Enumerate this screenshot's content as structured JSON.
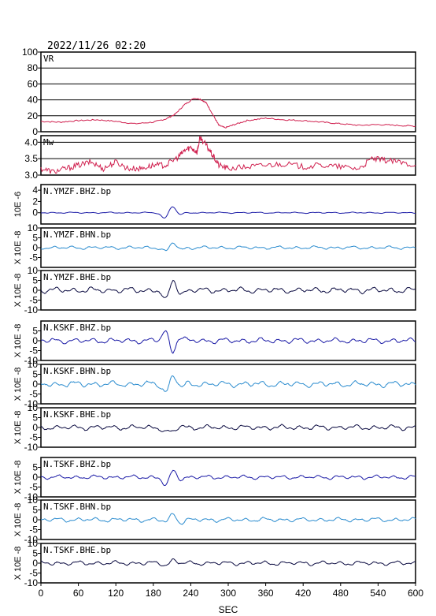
{
  "header": {
    "datetime": "2022/11/26 02:20"
  },
  "chart_data": {
    "type": "line",
    "xlabel": "SEC",
    "xlim": [
      0,
      600
    ],
    "xticks": [
      0,
      60,
      120,
      180,
      240,
      300,
      360,
      420,
      480,
      540,
      600
    ],
    "panels": [
      {
        "id": "vr",
        "label": "VR",
        "color": "#d0204f",
        "ylim": [
          0,
          100
        ],
        "yticks": [
          "0",
          "20",
          "40",
          "60",
          "80",
          "100"
        ],
        "ytick_values": [
          0,
          20,
          40,
          60,
          80,
          100
        ],
        "grid": true,
        "ylabel": "",
        "series": {
          "name": "VR",
          "x": [
            0,
            30,
            60,
            90,
            120,
            150,
            180,
            200,
            215,
            230,
            245,
            255,
            265,
            275,
            285,
            295,
            310,
            330,
            360,
            390,
            420,
            450,
            480,
            510,
            540,
            570,
            600
          ],
          "y": [
            13,
            12,
            14,
            15,
            13,
            10,
            12,
            16,
            22,
            34,
            42,
            41,
            36,
            22,
            8,
            5,
            9,
            14,
            17,
            15,
            14,
            12,
            10,
            8,
            9,
            8,
            7
          ]
        }
      },
      {
        "id": "mw",
        "label": "Mw",
        "color": "#d0204f",
        "ylim": [
          3.0,
          4.2
        ],
        "yticks": [
          "3.0",
          "3.5",
          "4.0"
        ],
        "ytick_values": [
          3.0,
          3.5,
          4.0
        ],
        "grid": true,
        "ylabel": "",
        "series": {
          "name": "Mw",
          "x": [
            0,
            20,
            40,
            60,
            80,
            100,
            120,
            140,
            160,
            180,
            200,
            220,
            230,
            240,
            250,
            255,
            265,
            275,
            285,
            300,
            330,
            360,
            390,
            420,
            450,
            480,
            510,
            530,
            550,
            570,
            600
          ],
          "y": [
            3.2,
            3.1,
            3.2,
            3.3,
            3.4,
            3.2,
            3.4,
            3.2,
            3.2,
            3.3,
            3.3,
            3.55,
            3.75,
            3.85,
            3.7,
            4.15,
            3.9,
            3.6,
            3.3,
            3.2,
            3.25,
            3.3,
            3.35,
            3.25,
            3.3,
            3.25,
            3.2,
            3.5,
            3.45,
            3.4,
            3.3
          ]
        }
      },
      {
        "id": "ymzf-bhz",
        "label": "N.YMZF.BHZ.bp",
        "color": "#1a1aa6",
        "ylim": [
          -2,
          5
        ],
        "yticks": [
          "0",
          "2",
          "4"
        ],
        "ytick_values": [
          0,
          2,
          4
        ],
        "grid": false,
        "ylabel": "10E  -6",
        "waveform": {
          "noise": 0.12,
          "events": [
            {
              "t": 198,
              "a": -1.0
            },
            {
              "t": 211,
              "a": 1.2
            },
            {
              "t": 222,
              "a": -0.4
            }
          ]
        }
      },
      {
        "id": "ymzf-bhn",
        "label": "N.YMZF.BHN.bp",
        "color": "#2b8ccf",
        "ylim": [
          -10,
          10
        ],
        "yticks": [
          "-5",
          "0",
          "5",
          "10"
        ],
        "ytick_values": [
          -5,
          0,
          5,
          10
        ],
        "grid": false,
        "ylabel": "X 10E  -8",
        "waveform": {
          "noise": 0.9,
          "events": [
            {
              "t": 200,
              "a": -2.0
            },
            {
              "t": 212,
              "a": 2.5
            },
            {
              "t": 225,
              "a": -1.0
            }
          ]
        }
      },
      {
        "id": "ymzf-bhe",
        "label": "N.YMZF.BHE.bp",
        "color": "#0a0a40",
        "ylim": [
          -10,
          10
        ],
        "yticks": [
          "-10",
          "-5",
          "0",
          "5",
          "10"
        ],
        "ytick_values": [
          -10,
          -5,
          0,
          5,
          10
        ],
        "grid": false,
        "ylabel": "X 10E  -8",
        "waveform": {
          "noise": 1.6,
          "events": [
            {
              "t": 200,
              "a": -5.5
            },
            {
              "t": 212,
              "a": 5.5
            },
            {
              "t": 225,
              "a": -2.0
            }
          ]
        }
      },
      {
        "id": "kskf-bhz",
        "label": "N.KSKF.BHZ.bp",
        "color": "#1a1aa6",
        "ylim": [
          -10,
          10
        ],
        "yticks": [
          "-10",
          "-5",
          "0",
          "5"
        ],
        "ytick_values": [
          -10,
          -5,
          0,
          5
        ],
        "grid": false,
        "ylabel": "X 10E  -8",
        "waveform": {
          "noise": 1.5,
          "events": [
            {
              "t": 200,
              "a": 5.5
            },
            {
              "t": 210,
              "a": -6.0
            },
            {
              "t": 222,
              "a": 2.0
            }
          ]
        }
      },
      {
        "id": "kskf-bhn",
        "label": "N.KSKF.BHN.bp",
        "color": "#2b8ccf",
        "ylim": [
          -10,
          10
        ],
        "yticks": [
          "-10",
          "-5",
          "0",
          "5",
          "10"
        ],
        "ytick_values": [
          -10,
          -5,
          0,
          5,
          10
        ],
        "grid": false,
        "ylabel": "X 10E  -8",
        "waveform": {
          "noise": 1.7,
          "events": [
            {
              "t": 200,
              "a": -4.0
            },
            {
              "t": 212,
              "a": 4.5
            },
            {
              "t": 225,
              "a": -1.5
            }
          ]
        }
      },
      {
        "id": "kskf-bhe",
        "label": "N.KSKF.BHE.bp",
        "color": "#0a0a40",
        "ylim": [
          -10,
          10
        ],
        "yticks": [
          "-10",
          "-5",
          "0",
          "5",
          "10"
        ],
        "ytick_values": [
          -10,
          -5,
          0,
          5,
          10
        ],
        "grid": false,
        "ylabel": "X 10E  -8",
        "waveform": {
          "noise": 1.4,
          "events": [
            {
              "t": 200,
              "a": -2.0
            },
            {
              "t": 212,
              "a": -2.5
            },
            {
              "t": 224,
              "a": 1.0
            }
          ]
        }
      },
      {
        "id": "tskf-bhz",
        "label": "N.TSKF.BHZ.bp",
        "color": "#1a1aa6",
        "ylim": [
          -10,
          10
        ],
        "yticks": [
          "-10",
          "-5",
          "0",
          "5"
        ],
        "ytick_values": [
          -10,
          -5,
          0,
          5
        ],
        "grid": false,
        "ylabel": "X 10E  -8",
        "waveform": {
          "noise": 1.1,
          "events": [
            {
              "t": 200,
              "a": -4.5
            },
            {
              "t": 212,
              "a": 3.5
            },
            {
              "t": 224,
              "a": -1.0
            }
          ]
        }
      },
      {
        "id": "tskf-bhn",
        "label": "N.TSKF.BHN.bp",
        "color": "#2b8ccf",
        "ylim": [
          -10,
          10
        ],
        "yticks": [
          "-10",
          "-5",
          "0",
          "5",
          "10"
        ],
        "ytick_values": [
          -10,
          -5,
          0,
          5,
          10
        ],
        "grid": false,
        "ylabel": "X 10E  -8",
        "waveform": {
          "noise": 1.2,
          "events": [
            {
              "t": 200,
              "a": -1.0
            },
            {
              "t": 212,
              "a": 3.0
            },
            {
              "t": 224,
              "a": -1.5
            }
          ]
        }
      },
      {
        "id": "tskf-bhe",
        "label": "N.TSKF.BHE.bp",
        "color": "#0a0a40",
        "ylim": [
          -10,
          10
        ],
        "yticks": [
          "-10",
          "-5",
          "0",
          "5",
          "10"
        ],
        "ytick_values": [
          -10,
          -5,
          0,
          5,
          10
        ],
        "grid": false,
        "ylabel": "X 10E  -8",
        "waveform": {
          "noise": 1.2,
          "events": [
            {
              "t": 200,
              "a": -1.0
            },
            {
              "t": 212,
              "a": 1.5
            }
          ]
        }
      }
    ]
  }
}
